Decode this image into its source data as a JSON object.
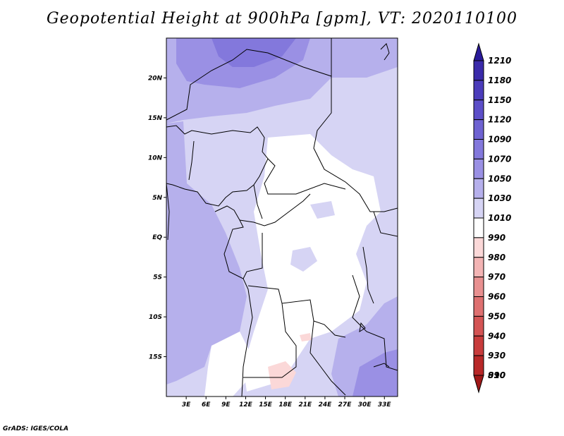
{
  "title": "Geopotential Height at 900hPa [gpm], VT: 2020110100",
  "credit": "GrADS: IGES/COLA",
  "map": {
    "lon_range": [
      0,
      35
    ],
    "lat_range": [
      -20,
      25
    ],
    "lat_ticks": [
      {
        "value": 20,
        "label": "20N"
      },
      {
        "value": 15,
        "label": "15N"
      },
      {
        "value": 10,
        "label": "10N"
      },
      {
        "value": 5,
        "label": "5N"
      },
      {
        "value": 0,
        "label": "EQ"
      },
      {
        "value": -5,
        "label": "5S"
      },
      {
        "value": -10,
        "label": "10S"
      },
      {
        "value": -15,
        "label": "15S"
      }
    ],
    "lon_ticks": [
      {
        "value": 3,
        "label": "3E"
      },
      {
        "value": 6,
        "label": "6E"
      },
      {
        "value": 9,
        "label": "9E"
      },
      {
        "value": 12,
        "label": "12E"
      },
      {
        "value": 15,
        "label": "15E"
      },
      {
        "value": 18,
        "label": "18E"
      },
      {
        "value": 21,
        "label": "21E"
      },
      {
        "value": 24,
        "label": "24E"
      },
      {
        "value": 27,
        "label": "27E"
      },
      {
        "value": 30,
        "label": "30E"
      },
      {
        "value": 33,
        "label": "33E"
      }
    ]
  },
  "colorbar": {
    "levels": [
      "1210",
      "1180",
      "1150",
      "1120",
      "1090",
      "1070",
      "1050",
      "1030",
      "1010",
      "990",
      "980",
      "970",
      "960",
      "950",
      "940",
      "930",
      "910",
      "890"
    ],
    "colors": [
      "#2a1a9a",
      "#3a2aaa",
      "#4b3cbb",
      "#5c4ec8",
      "#6e62d2",
      "#8378dc",
      "#9a90e4",
      "#b6b0ec",
      "#d6d4f4",
      "#ffffff",
      "#fbd8d8",
      "#f3b4b4",
      "#e89090",
      "#de7070",
      "#d45454",
      "#c83c3c",
      "#b82828",
      "#a01818"
    ]
  }
}
